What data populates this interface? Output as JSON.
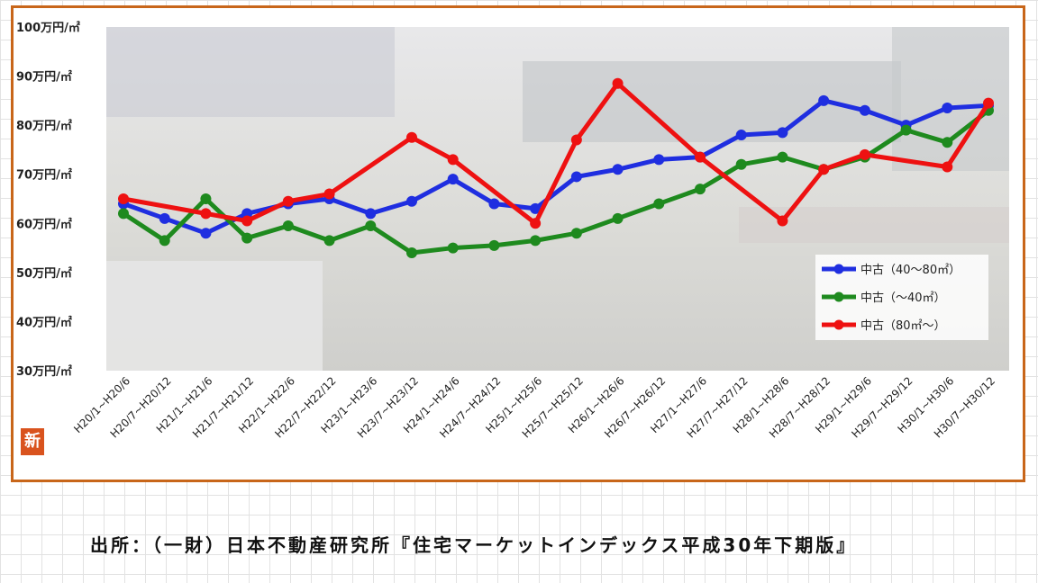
{
  "chart_data": {
    "type": "line",
    "title": "",
    "xlabel": "",
    "ylabel": "",
    "ylim": [
      30,
      100
    ],
    "yticks": [
      "30万円/㎡",
      "40万円/㎡",
      "50万円/㎡",
      "60万円/㎡",
      "70万円/㎡",
      "80万円/㎡",
      "90万円/㎡",
      "100万円/㎡"
    ],
    "categories": [
      "H20/1~H20/6",
      "H20/7~H20/12",
      "H21/1~H21/6",
      "H21/7~H21/12",
      "H22/1~H22/6",
      "H22/7~H22/12",
      "H23/1~H23/6",
      "H23/7~H23/12",
      "H24/1~H24/6",
      "H24/7~H24/12",
      "H25/1~H25/6",
      "H25/7~H25/12",
      "H26/1~H26/6",
      "H26/7~H26/12",
      "H27/1~H27/6",
      "H27/7~H27/12",
      "H28/1~H28/6",
      "H28/7~H28/12",
      "H29/1~H29/6",
      "H29/7~H29/12",
      "H30/1~H30/6",
      "H30/7~H30/12"
    ],
    "series": [
      {
        "name": "中古（40～80㎡）",
        "color": "#1f2ee0",
        "values": [
          64,
          61,
          58,
          62,
          64,
          65,
          62,
          64.5,
          69,
          64,
          63,
          69.5,
          71,
          73,
          73.5,
          78,
          78.5,
          85,
          83,
          80,
          83.5,
          84
        ]
      },
      {
        "name": "中古（～40㎡）",
        "color": "#1e8a1e",
        "values": [
          62,
          56.5,
          65,
          57,
          59.5,
          56.5,
          59.5,
          54,
          55,
          55.5,
          56.5,
          58,
          61,
          64,
          67,
          72,
          73.5,
          71,
          73.5,
          79,
          76.5,
          83
        ]
      },
      {
        "name": "中古（80㎡～）",
        "color": "#ee1111",
        "values": [
          65,
          null,
          62,
          60.5,
          64.5,
          66,
          null,
          77.5,
          73,
          null,
          60,
          77,
          88.5,
          null,
          73.5,
          null,
          60.5,
          71,
          74,
          null,
          71.5,
          84.5
        ]
      }
    ],
    "grid": false,
    "legend": "right"
  },
  "source": "出所：（一財）日本不動産研究所『住宅マーケットインデックス平成30年下期版』",
  "badge": "新"
}
